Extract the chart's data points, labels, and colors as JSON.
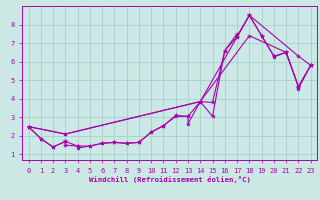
{
  "xlabel": "Windchill (Refroidissement éolien,°C)",
  "xlim": [
    -0.5,
    23.5
  ],
  "ylim": [
    0.7,
    9.0
  ],
  "xticks": [
    0,
    1,
    2,
    3,
    4,
    5,
    6,
    7,
    8,
    9,
    10,
    11,
    12,
    13,
    14,
    15,
    16,
    17,
    18,
    19,
    20,
    21,
    22,
    23
  ],
  "yticks": [
    1,
    2,
    3,
    4,
    5,
    6,
    7,
    8
  ],
  "bg_color": "#cce8e4",
  "grid_color": "#aad4cf",
  "line_color": "#aa00aa",
  "marker": "*",
  "ms": 3.0,
  "lw": 0.8,
  "line1_x": [
    0,
    1,
    2,
    3,
    4,
    4,
    5,
    6,
    7,
    8,
    9,
    10,
    11,
    12,
    13,
    14,
    15,
    16,
    17,
    18,
    19,
    20,
    21,
    22,
    23
  ],
  "line1_y": [
    2.5,
    1.85,
    1.4,
    1.7,
    1.45,
    1.35,
    1.45,
    1.6,
    1.65,
    1.6,
    1.65,
    2.2,
    2.55,
    3.1,
    3.05,
    3.85,
    3.8,
    6.6,
    7.35,
    8.5,
    7.4,
    6.3,
    6.5,
    4.65,
    5.8
  ],
  "line2_x": [
    0,
    1,
    2,
    3,
    3,
    4,
    5,
    6,
    7,
    8,
    9,
    10,
    11,
    12,
    13,
    13,
    14,
    15,
    16,
    17,
    17,
    18,
    19,
    20,
    20,
    21,
    22,
    22,
    23
  ],
  "line2_y": [
    2.5,
    1.85,
    1.4,
    1.7,
    1.5,
    1.45,
    1.45,
    1.6,
    1.65,
    1.6,
    1.65,
    2.2,
    2.55,
    3.05,
    3.05,
    2.65,
    3.85,
    3.05,
    6.6,
    7.5,
    7.35,
    8.5,
    7.4,
    6.3,
    6.25,
    6.5,
    4.65,
    4.55,
    5.8
  ],
  "line3_x": [
    0,
    3,
    14,
    18,
    22,
    23
  ],
  "line3_y": [
    2.5,
    2.1,
    3.85,
    8.5,
    6.3,
    5.8
  ],
  "line4_x": [
    0,
    3,
    14,
    18,
    21,
    22,
    23
  ],
  "line4_y": [
    2.5,
    2.1,
    3.85,
    7.4,
    6.5,
    4.65,
    5.8
  ]
}
